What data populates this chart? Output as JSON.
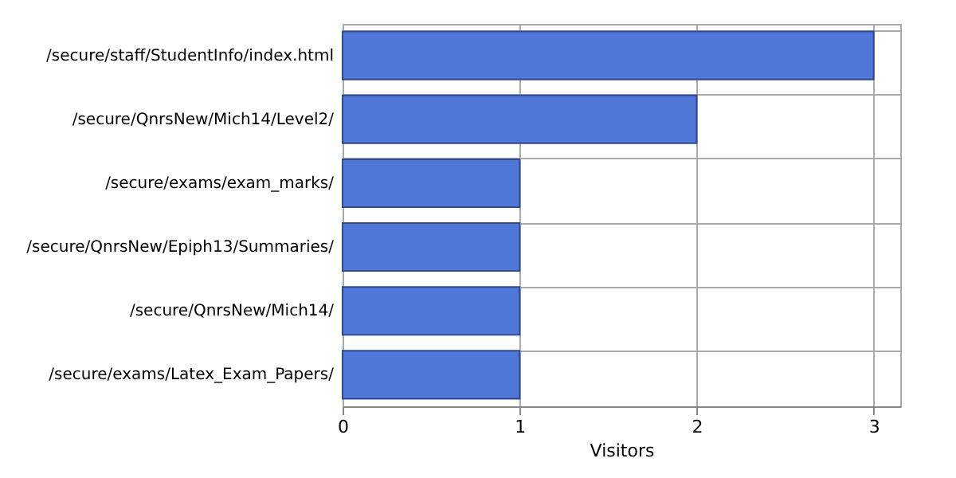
{
  "chart_data": {
    "type": "bar",
    "orientation": "horizontal",
    "xlabel": "Visitors",
    "categories": [
      "/secure/staff/StudentInfo/index.html",
      "/secure/QnrsNew/Mich14/Level2/",
      "/secure/exams/exam_marks/",
      "/secure/QnrsNew/Epiph13/Summaries/",
      "/secure/QnrsNew/Mich14/",
      "/secure/exams/Latex_Exam_Papers/"
    ],
    "values": [
      3,
      2,
      1,
      1,
      1,
      1
    ],
    "color": "#5078d8",
    "xlim": [
      0,
      3.15
    ],
    "xticks": [
      0,
      1,
      2,
      3
    ],
    "grid": true
  }
}
